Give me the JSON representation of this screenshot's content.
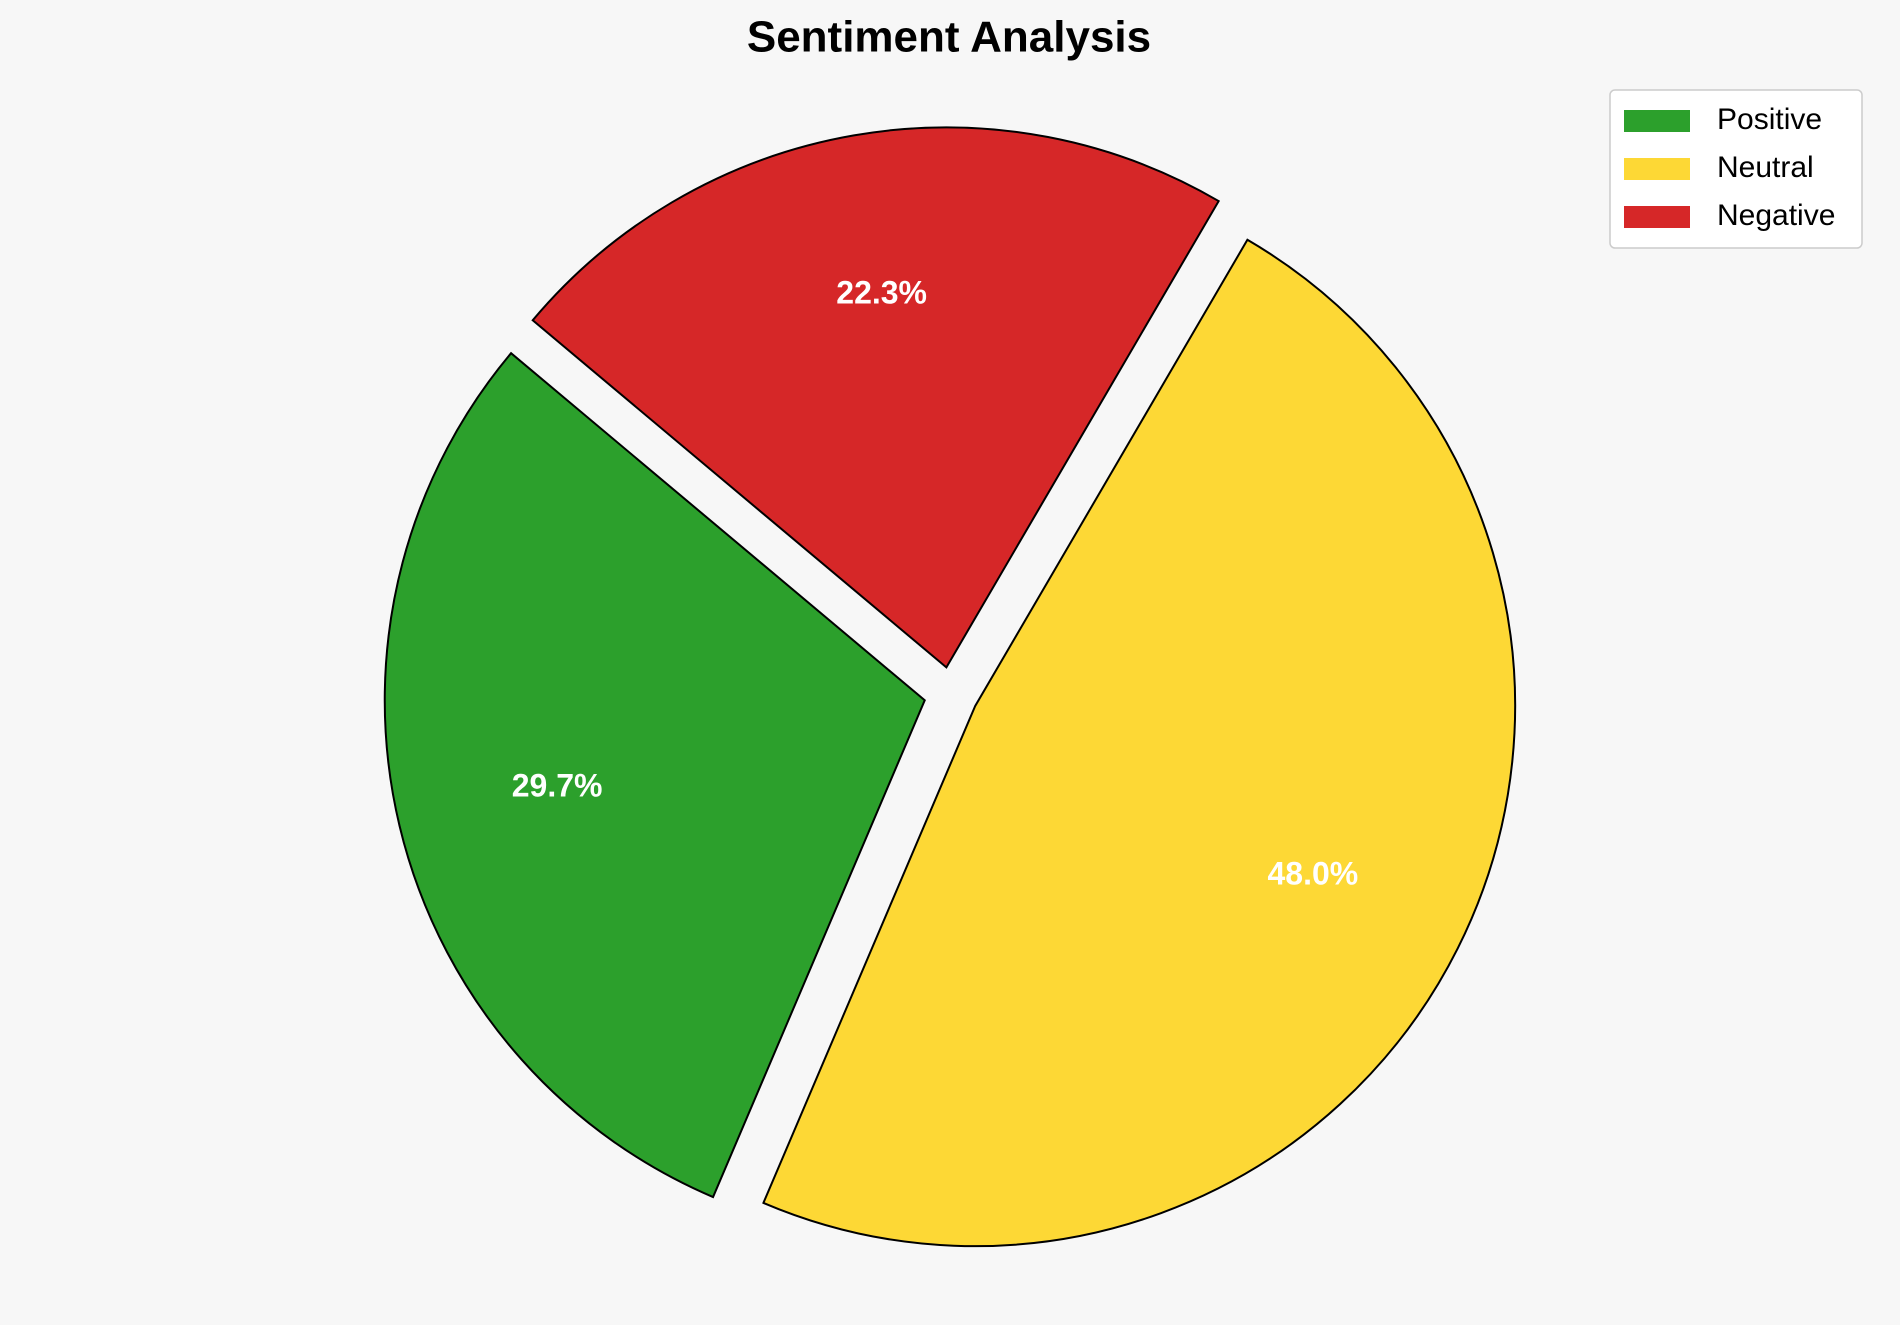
{
  "chart_data": {
    "type": "pie",
    "title": "Sentiment Analysis",
    "categories": [
      "Positive",
      "Neutral",
      "Negative"
    ],
    "values": [
      29.7,
      48,
      22.3
    ],
    "value_labels": [
      "29.7%",
      "48.0%",
      "22.3%"
    ],
    "colors": [
      "#2ca02c",
      "#fdd835",
      "#d62728"
    ],
    "legend": "upper right"
  }
}
